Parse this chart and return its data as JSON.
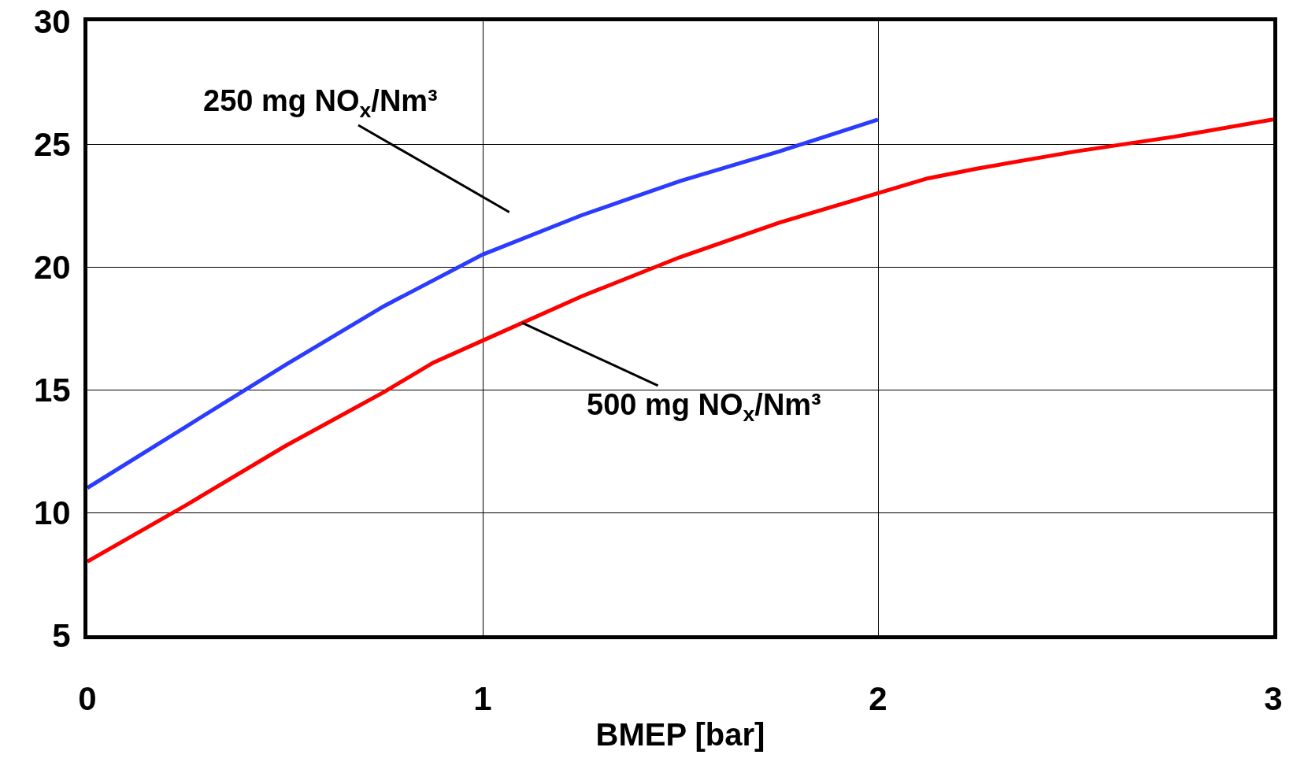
{
  "chart_data": {
    "type": "line",
    "xlabel": "BMEP [bar]",
    "x": [
      0,
      0.25,
      0.5,
      0.75,
      0.875,
      1,
      1.25,
      1.5,
      1.75,
      2,
      2.125,
      2.25,
      2.5,
      2.75,
      3
    ],
    "series": [
      {
        "color": "#2b3cff",
        "x": [
          0,
          0.25,
          0.5,
          0.75,
          1,
          1.25,
          1.5,
          1.75,
          2
        ],
        "values": [
          11.0,
          13.5,
          16.0,
          18.4,
          20.5,
          22.1,
          23.5,
          24.7,
          26.0
        ]
      },
      {
        "color": "#ff0000",
        "values": [
          8.0,
          10.3,
          12.7,
          14.9,
          16.1,
          17.0,
          18.8,
          20.4,
          21.8,
          23.0,
          23.6,
          24.0,
          24.7,
          25.3,
          26.0
        ]
      }
    ],
    "annotations": [
      {
        "text": "250 mg NO$_{x}$/Nm³",
        "x": 1.15,
        "y": 21.46
      },
      {
        "text": "500 mg NO$_{x}$/Nm³",
        "x": 1.1,
        "y": 17.72
      }
    ],
    "xlim": [
      0,
      3
    ],
    "xticks": [
      0,
      1,
      2,
      3
    ],
    "ylim": [
      5,
      30
    ],
    "yticks": [
      5,
      10,
      15,
      20,
      25,
      30
    ],
    "grid": true,
    "legend": false,
    "marker": "none",
    "line_style": "solid"
  }
}
